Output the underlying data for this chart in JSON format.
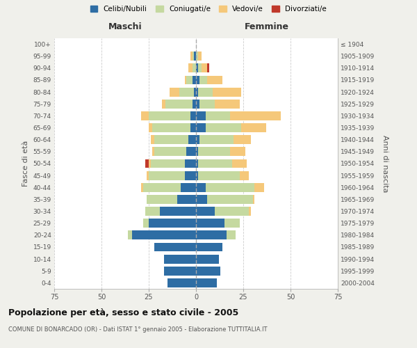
{
  "age_groups": [
    "0-4",
    "5-9",
    "10-14",
    "15-19",
    "20-24",
    "25-29",
    "30-34",
    "35-39",
    "40-44",
    "45-49",
    "50-54",
    "55-59",
    "60-64",
    "65-69",
    "70-74",
    "75-79",
    "80-84",
    "85-89",
    "90-94",
    "95-99",
    "100+"
  ],
  "birth_years": [
    "2000-2004",
    "1995-1999",
    "1990-1994",
    "1985-1989",
    "1980-1984",
    "1975-1979",
    "1970-1974",
    "1965-1969",
    "1960-1964",
    "1955-1959",
    "1950-1954",
    "1945-1949",
    "1940-1944",
    "1935-1939",
    "1930-1934",
    "1925-1929",
    "1920-1924",
    "1915-1919",
    "1910-1914",
    "1905-1909",
    "≤ 1904"
  ],
  "colors": {
    "celibi": "#2e6da4",
    "coniugati": "#c5d9a0",
    "vedovi": "#f5c87a",
    "divorziati": "#c0392b"
  },
  "males": {
    "celibi": [
      15,
      17,
      17,
      22,
      34,
      25,
      19,
      10,
      8,
      6,
      6,
      5,
      4,
      3,
      3,
      2,
      1,
      2,
      0,
      1,
      0
    ],
    "coniugati": [
      0,
      0,
      0,
      0,
      2,
      3,
      8,
      16,
      20,
      19,
      18,
      17,
      18,
      20,
      22,
      14,
      8,
      3,
      2,
      1,
      0
    ],
    "vedovi": [
      0,
      0,
      0,
      0,
      0,
      0,
      0,
      0,
      1,
      1,
      1,
      1,
      2,
      2,
      4,
      2,
      5,
      1,
      2,
      1,
      0
    ],
    "divorziati": [
      0,
      0,
      0,
      0,
      0,
      0,
      0,
      0,
      0,
      0,
      2,
      0,
      0,
      0,
      0,
      0,
      0,
      0,
      0,
      0,
      0
    ]
  },
  "females": {
    "celibi": [
      11,
      13,
      12,
      14,
      16,
      15,
      10,
      6,
      5,
      1,
      1,
      1,
      2,
      5,
      5,
      2,
      1,
      2,
      1,
      0,
      0
    ],
    "coniugati": [
      0,
      0,
      0,
      0,
      5,
      8,
      18,
      24,
      26,
      22,
      18,
      17,
      18,
      19,
      13,
      8,
      8,
      4,
      2,
      1,
      0
    ],
    "vedovi": [
      0,
      0,
      0,
      0,
      0,
      0,
      1,
      1,
      5,
      5,
      8,
      8,
      9,
      13,
      27,
      13,
      15,
      8,
      3,
      2,
      0
    ],
    "divorziati": [
      0,
      0,
      0,
      0,
      0,
      0,
      0,
      0,
      0,
      0,
      0,
      0,
      0,
      0,
      0,
      0,
      0,
      0,
      1,
      0,
      0
    ]
  },
  "xlim": 75,
  "title_main": "Popolazione per età, sesso e stato civile - 2005",
  "title_sub": "COMUNE DI BONARCADO (OR) - Dati ISTAT 1° gennaio 2005 - Elaborazione TUTTITALIA.IT",
  "xlabel_left": "Maschi",
  "xlabel_right": "Femmine",
  "ylabel_left": "Fasce di età",
  "ylabel_right": "Anni di nascita",
  "legend_labels": [
    "Celibi/Nubili",
    "Coniugati/e",
    "Vedovi/e",
    "Divorziati/e"
  ],
  "background_color": "#f0f0eb",
  "plot_bg": "#ffffff",
  "grid_color": "#cccccc"
}
